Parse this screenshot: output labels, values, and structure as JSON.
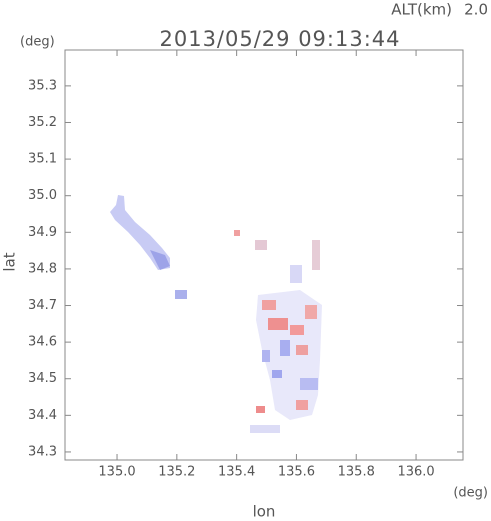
{
  "chart_data": {
    "type": "map",
    "title": "2013/05/29 09:13:44",
    "altitude_label": "ALT(km)",
    "altitude": "2.0",
    "x_label": "lon",
    "y_label": "lat",
    "x_unit": "(deg)",
    "y_unit": "(deg)",
    "xlim": [
      134.826,
      136.157
    ],
    "ylim": [
      34.278,
      35.398
    ],
    "xticks": [
      {
        "value": 135.0,
        "label": "135.0"
      },
      135.2,
      135.4,
      135.6,
      135.8,
      {
        "value": 136.0,
        "label": "136.0"
      }
    ],
    "yticks": [
      34.3,
      34.4,
      34.5,
      34.6,
      34.7,
      34.8,
      34.9,
      {
        "value": 35.0,
        "label": "35.0"
      },
      35.1,
      35.2,
      35.3
    ]
  }
}
